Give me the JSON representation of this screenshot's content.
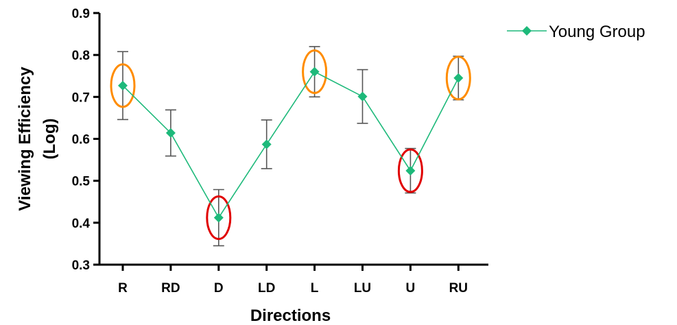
{
  "chart_data": {
    "type": "line",
    "title": "",
    "xlabel": "Directions",
    "ylabel_line1": "Viewing Efficiency",
    "ylabel_line2": "(Log)",
    "ylim": [
      0.3,
      0.9
    ],
    "yticks": [
      0.3,
      0.4,
      0.5,
      0.6,
      0.7,
      0.8,
      0.9
    ],
    "ytick_labels": [
      "0.3",
      "0.4",
      "0.5",
      "0.6",
      "0.7",
      "0.8",
      "0.9"
    ],
    "categories": [
      "R",
      "RD",
      "D",
      "LD",
      "L",
      "LU",
      "U",
      "RU"
    ],
    "grid": false,
    "legend_position": "top-right",
    "series": [
      {
        "name": "Young Group",
        "color": "#1db97a",
        "values": [
          0.727,
          0.614,
          0.412,
          0.587,
          0.76,
          0.701,
          0.524,
          0.745
        ],
        "error": [
          0.081,
          0.055,
          0.067,
          0.058,
          0.06,
          0.064,
          0.053,
          0.052
        ]
      }
    ],
    "highlights": [
      {
        "category": "R",
        "color": "#ff8c00"
      },
      {
        "category": "D",
        "color": "#e00000"
      },
      {
        "category": "L",
        "color": "#ff8c00"
      },
      {
        "category": "U",
        "color": "#e00000"
      },
      {
        "category": "RU",
        "color": "#ff8c00"
      }
    ],
    "errorbar_color": "#555555",
    "axis_color": "#000000"
  }
}
